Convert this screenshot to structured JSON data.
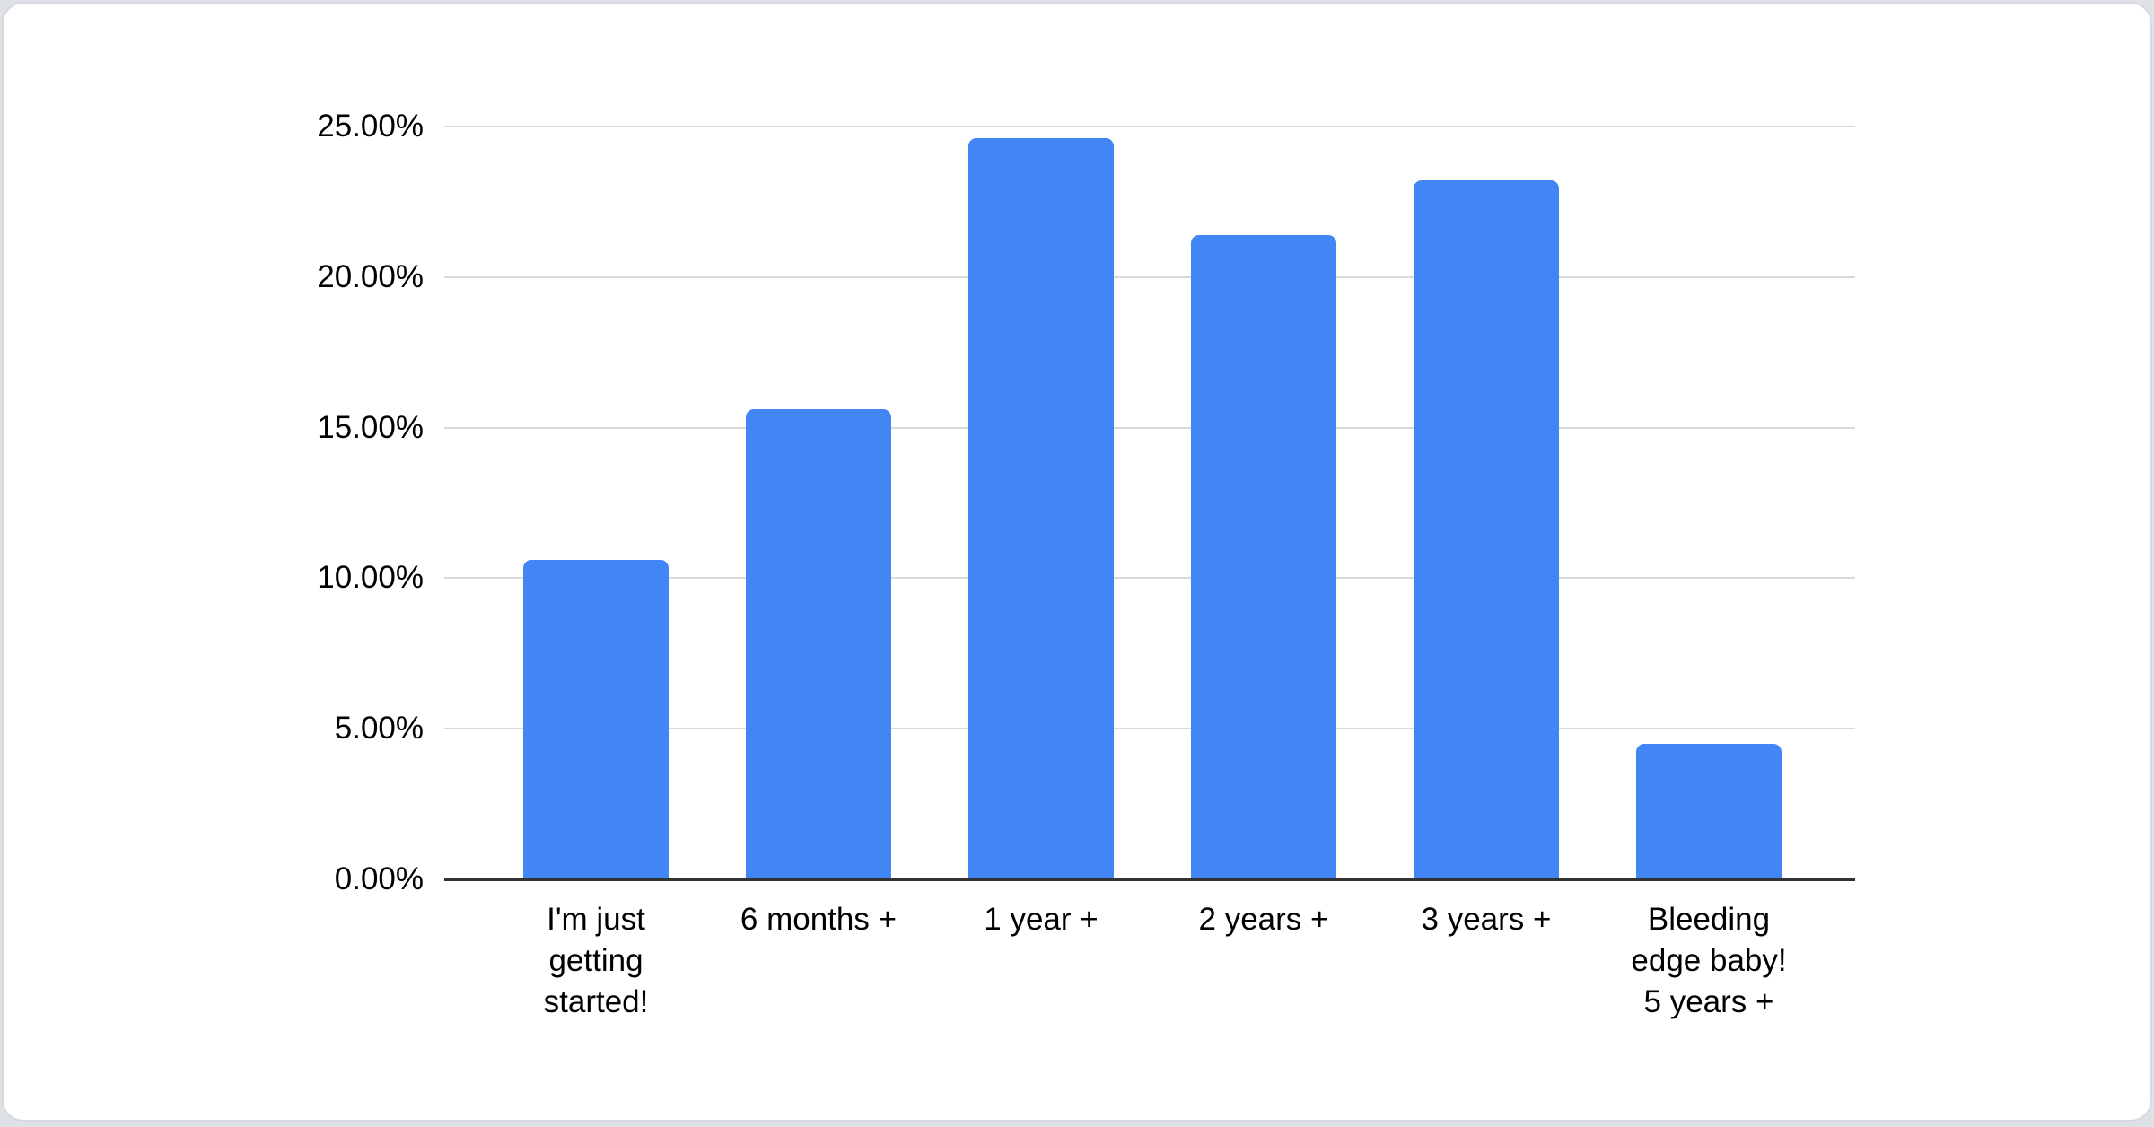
{
  "page": {
    "background_color": "#dee1e5",
    "card_background": "#ffffff",
    "card_border_color": "#d6d9dd"
  },
  "chart_data": {
    "type": "bar",
    "title": "",
    "xlabel": "",
    "ylabel": "",
    "categories": [
      "I'm just getting started!",
      "6 months +",
      "1 year +",
      "2 years +",
      "3 years +",
      "Bleeding edge baby! 5 years +"
    ],
    "category_label_lines": [
      [
        "I'm just",
        "getting",
        "started!"
      ],
      [
        "6 months +"
      ],
      [
        "1 year +"
      ],
      [
        "2 years +"
      ],
      [
        "3 years +"
      ],
      [
        "Bleeding",
        "edge baby!",
        "5 years +"
      ]
    ],
    "values": [
      10.6,
      15.6,
      24.6,
      21.4,
      23.2,
      4.5
    ],
    "unit": "%",
    "ylim": [
      0,
      25
    ],
    "ytick_step": 5,
    "yticks": [
      {
        "value": 25,
        "label": "25.00%"
      },
      {
        "value": 20,
        "label": "20.00%"
      },
      {
        "value": 15,
        "label": "15.00%"
      },
      {
        "value": 10,
        "label": "10.00%"
      },
      {
        "value": 5,
        "label": "5.00%"
      },
      {
        "value": 0,
        "label": "0.00%"
      }
    ],
    "grid": true,
    "legend": "none",
    "colors": {
      "bar": "#4285f4",
      "gridline": "#d9d9d9",
      "axis_line": "#333333",
      "tick_text": "#000000"
    }
  }
}
